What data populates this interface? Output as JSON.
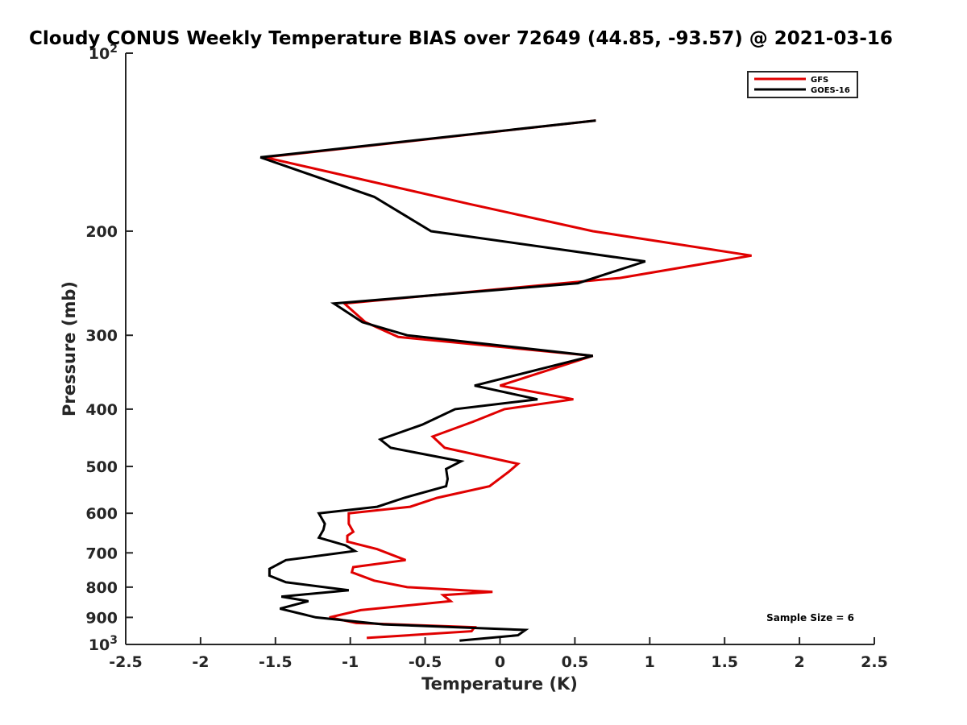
{
  "chart_data": {
    "type": "line",
    "title": "Cloudy CONUS Weekly Temperature BIAS over 72649 (44.85, -93.57) @ 2021-03-16",
    "xlabel": "Temperature (K)",
    "ylabel": "Pressure (mb)",
    "xlim": [
      -2.5,
      2.5
    ],
    "ylim": [
      100,
      1000
    ],
    "y_scale": "log",
    "y_reversed": true,
    "grid": false,
    "legend_position": "top-right",
    "x_ticks": [
      "-2.5",
      "-2",
      "-1.5",
      "-1",
      "-0.5",
      "0",
      "0.5",
      "1",
      "1.5",
      "2",
      "2.5"
    ],
    "y_ticks": [
      {
        "value": 100,
        "label": "10",
        "exp": "2"
      },
      {
        "value": 200,
        "label": "200"
      },
      {
        "value": 300,
        "label": "300"
      },
      {
        "value": 400,
        "label": "400"
      },
      {
        "value": 500,
        "label": "500"
      },
      {
        "value": 600,
        "label": "600"
      },
      {
        "value": 700,
        "label": "700"
      },
      {
        "value": 800,
        "label": "800"
      },
      {
        "value": 900,
        "label": "900"
      },
      {
        "value": 1000,
        "label": "10",
        "exp": "3"
      }
    ],
    "annotation": "Sample Size = 6",
    "series": [
      {
        "name": "GFS",
        "color": "#e00000",
        "points": [
          [
            0.64,
            130
          ],
          [
            -1.57,
            150
          ],
          [
            -0.2,
            180
          ],
          [
            0.62,
            200
          ],
          [
            1.68,
            220
          ],
          [
            0.8,
            240
          ],
          [
            -1.04,
            265
          ],
          [
            -0.9,
            285
          ],
          [
            -0.68,
            302
          ],
          [
            0.62,
            325
          ],
          [
            0.0,
            365
          ],
          [
            0.49,
            385
          ],
          [
            0.03,
            400
          ],
          [
            -0.18,
            420
          ],
          [
            -0.45,
            445
          ],
          [
            -0.37,
            465
          ],
          [
            0.12,
            495
          ],
          [
            0.06,
            510
          ],
          [
            -0.07,
            540
          ],
          [
            -0.42,
            565
          ],
          [
            -0.6,
            585
          ],
          [
            -1.01,
            600
          ],
          [
            -1.01,
            625
          ],
          [
            -0.98,
            645
          ],
          [
            -1.02,
            655
          ],
          [
            -1.02,
            670
          ],
          [
            -0.82,
            690
          ],
          [
            -0.63,
            720
          ],
          [
            -0.98,
            740
          ],
          [
            -0.99,
            755
          ],
          [
            -0.84,
            780
          ],
          [
            -0.62,
            800
          ],
          [
            -0.05,
            815
          ],
          [
            -0.38,
            825
          ],
          [
            -0.33,
            845
          ],
          [
            -0.93,
            875
          ],
          [
            -1.14,
            900
          ],
          [
            -0.96,
            920
          ],
          [
            -0.17,
            935
          ],
          [
            -0.19,
            950
          ],
          [
            -0.89,
            975
          ]
        ]
      },
      {
        "name": "GOES-16",
        "color": "#000000",
        "points": [
          [
            0.64,
            130
          ],
          [
            -1.6,
            150
          ],
          [
            -0.84,
            175
          ],
          [
            -0.46,
            200
          ],
          [
            0.97,
            225
          ],
          [
            0.52,
            245
          ],
          [
            -1.11,
            265
          ],
          [
            -0.92,
            285
          ],
          [
            -0.62,
            300
          ],
          [
            0.62,
            325
          ],
          [
            -0.17,
            365
          ],
          [
            0.25,
            385
          ],
          [
            -0.3,
            400
          ],
          [
            -0.52,
            425
          ],
          [
            -0.8,
            450
          ],
          [
            -0.73,
            465
          ],
          [
            -0.26,
            490
          ],
          [
            -0.36,
            505
          ],
          [
            -0.35,
            525
          ],
          [
            -0.36,
            540
          ],
          [
            -0.64,
            565
          ],
          [
            -0.82,
            585
          ],
          [
            -1.21,
            600
          ],
          [
            -1.17,
            625
          ],
          [
            -1.18,
            640
          ],
          [
            -1.21,
            660
          ],
          [
            -1.03,
            680
          ],
          [
            -0.97,
            695
          ],
          [
            -1.43,
            720
          ],
          [
            -1.54,
            745
          ],
          [
            -1.54,
            765
          ],
          [
            -1.43,
            785
          ],
          [
            -1.01,
            810
          ],
          [
            -1.46,
            830
          ],
          [
            -1.28,
            845
          ],
          [
            -1.47,
            870
          ],
          [
            -1.23,
            900
          ],
          [
            -0.78,
            925
          ],
          [
            0.17,
            945
          ],
          [
            0.12,
            965
          ],
          [
            -0.27,
            985
          ]
        ]
      }
    ]
  }
}
